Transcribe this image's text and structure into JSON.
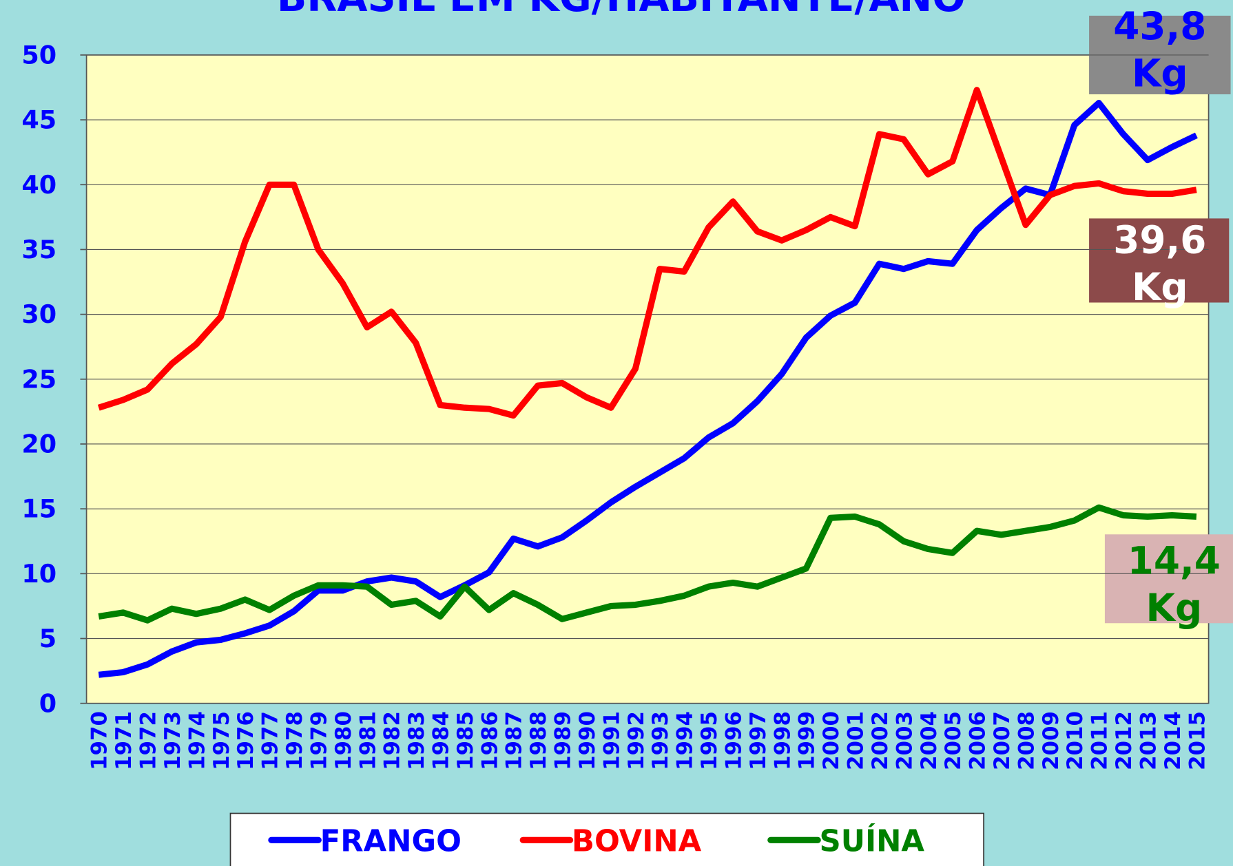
{
  "chart_data": {
    "type": "line",
    "title": "BRASIL EM KG/HABITANTE/ANO",
    "categories": [
      "1970",
      "1971",
      "1972",
      "1973",
      "1974",
      "1975",
      "1976",
      "1977",
      "1978",
      "1979",
      "1980",
      "1981",
      "1982",
      "1983",
      "1984",
      "1985",
      "1986",
      "1987",
      "1988",
      "1989",
      "1990",
      "1991",
      "1992",
      "1993",
      "1994",
      "1995",
      "1996",
      "1997",
      "1998",
      "1999",
      "2000",
      "2001",
      "2002",
      "2003",
      "2004",
      "2005",
      "2006",
      "2007",
      "2008",
      "2009",
      "2010",
      "2011",
      "2012",
      "2013",
      "2014",
      "2015"
    ],
    "series": [
      {
        "name": "FRANGO",
        "color": "#0000ff",
        "values": [
          2.2,
          2.4,
          3.0,
          4.0,
          4.7,
          4.9,
          5.4,
          6.0,
          7.1,
          8.7,
          8.7,
          9.4,
          9.7,
          9.4,
          8.2,
          9.1,
          10.1,
          12.7,
          12.1,
          12.8,
          14.1,
          15.5,
          16.7,
          17.8,
          18.9,
          20.5,
          21.6,
          23.3,
          25.4,
          28.2,
          29.9,
          30.9,
          33.9,
          33.5,
          34.1,
          33.9,
          36.5,
          38.2,
          39.7,
          39.2,
          44.6,
          46.3,
          43.9,
          41.9,
          42.9,
          43.8
        ]
      },
      {
        "name": "BOVINA",
        "color": "#ff0000",
        "values": [
          22.8,
          23.4,
          24.2,
          26.2,
          27.7,
          29.8,
          35.6,
          40.0,
          40.0,
          35.0,
          32.4,
          29.0,
          30.2,
          27.8,
          23.0,
          22.8,
          22.7,
          22.2,
          24.5,
          24.7,
          23.6,
          22.8,
          25.8,
          33.5,
          33.3,
          36.7,
          38.7,
          36.4,
          35.7,
          36.5,
          37.5,
          36.8,
          43.9,
          43.5,
          40.8,
          41.8,
          47.3,
          42.1,
          36.9,
          39.2,
          39.9,
          40.1,
          39.5,
          39.3,
          39.3,
          39.6
        ]
      },
      {
        "name": "SUÍNA",
        "color": "#008000",
        "values": [
          6.7,
          7.0,
          6.4,
          7.3,
          6.9,
          7.3,
          8.0,
          7.2,
          8.3,
          9.1,
          9.1,
          9.0,
          7.6,
          7.9,
          6.7,
          9.0,
          7.2,
          8.5,
          7.6,
          6.5,
          7.0,
          7.5,
          7.6,
          7.9,
          8.3,
          9.0,
          9.3,
          9.0,
          9.7,
          10.4,
          14.3,
          14.4,
          13.8,
          12.5,
          11.9,
          11.6,
          13.3,
          13.0,
          13.3,
          13.6,
          14.1,
          15.1,
          14.5,
          14.4,
          14.5,
          14.4
        ]
      }
    ],
    "ylim": [
      0,
      50
    ],
    "yticks": [
      0,
      5,
      10,
      15,
      20,
      25,
      30,
      35,
      40,
      45,
      50
    ],
    "grid": true,
    "annotations": [
      {
        "lines": [
          "43,8",
          "Kg"
        ],
        "color": "#0000ff"
      },
      {
        "lines": [
          "39,6",
          "Kg"
        ],
        "color": "#ffffff"
      },
      {
        "lines": [
          "14,4",
          "Kg"
        ],
        "color": "#008000"
      }
    ]
  }
}
